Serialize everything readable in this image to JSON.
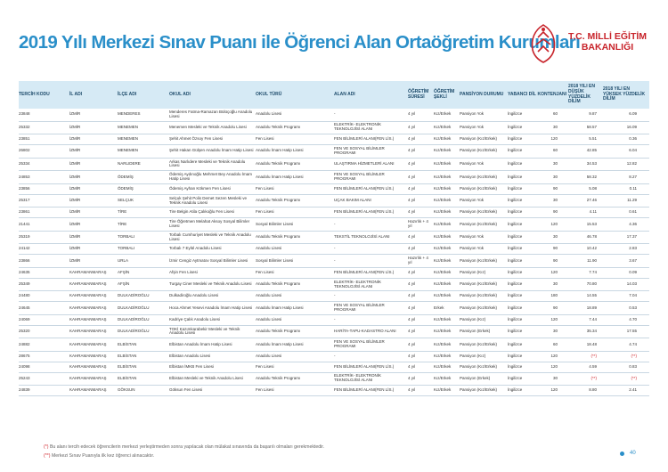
{
  "title": "2019 Yılı Merkezi Sınav Puanı ile Öğrenci Alan Ortaöğretim Kurumları",
  "logo": {
    "line1": "T.C. MİLLİ EĞİTİM",
    "line2": "BAKANLIĞI",
    "color": "#c8242b"
  },
  "accent_color": "#2a8fc9",
  "columns": [
    "TERCİH KODU",
    "İL ADI",
    "İLÇE ADI",
    "OKUL ADI",
    "OKUL TÜRÜ",
    "ALAN ADI",
    "ÖĞRETİM SÜRESİ",
    "ÖĞRETİM ŞEKLİ",
    "PANSİYON DURUMU",
    "YABANCI DİL",
    "KONTENJANI",
    "2018 YILI EN DÜŞÜK YÜZDELİK DİLİM",
    "2018 YILI EN YÜKSEK YÜZDELİK DİLİM"
  ],
  "rows": [
    [
      "23848",
      "İZMİR",
      "MENDERES",
      "Menderes Fatma-Ramazan Bülüçoğlu Anadolu Lisesi",
      "Anadolu Lisesi",
      "-",
      "4 yıl",
      "Kız/Erkek",
      "Pansiyon Yok",
      "İngilizce",
      "60",
      "9.87",
      "6.09"
    ],
    [
      "25332",
      "İZMİR",
      "MENEMEN",
      "Menemen Mesleki ve Teknik Anadolu Lisesi",
      "Anadolu Teknik Programı",
      "ELEKTRİK- ELEKTRONİK TEKNOLOJİSİ ALANI",
      "4 yıl",
      "Kız/Erkek",
      "Pansiyon Yok",
      "İngilizce",
      "30",
      "58.57",
      "16.09"
    ],
    [
      "23851",
      "İZMİR",
      "MENEMEN",
      "Şehit Ahmet Özsoy Fen Lisesi",
      "Fen Lisesi",
      "FEN BİLİMLERİ ALANI(FEN LİS.)",
      "4 yıl",
      "Kız/Erkek",
      "Pansiyon (Kız/Erkek)",
      "İngilizce",
      "120",
      "5.51",
      "0.36"
    ],
    [
      "26802",
      "İZMİR",
      "MENEMEN",
      "Şehit Hakan Gülşen Anadolu İmam Hatip Lisesi",
      "Anadolu İmam Hatip Lisesi",
      "FEN VE SOSYAL BİLİMLER PROGRAMI",
      "4 yıl",
      "Kız/Erkek",
      "Pansiyon (Kız/Erkek)",
      "İngilizce",
      "60",
      "42.85",
      "6.04"
    ],
    [
      "25334",
      "İZMİR",
      "NARLIDERE",
      "Arkas Narlıdere Mesleki ve Teknik Anadolu Lisesi",
      "Anadolu Teknik Programı",
      "ULAŞTIRMA HİZMETLERİ ALANI",
      "4 yıl",
      "Kız/Erkek",
      "Pansiyon Yok",
      "İngilizce",
      "30",
      "34.53",
      "12.82"
    ],
    [
      "24853",
      "İZMİR",
      "ÖDEMİŞ",
      "Ödemiş Aydınoğlu Mehmet Bey Anadolu İmam Hatip Lisesi",
      "Anadolu İmam Hatip Lisesi",
      "FEN VE SOSYAL BİLİMLER PROGRAMI",
      "4 yıl",
      "Kız/Erkek",
      "Pansiyon (Kız/Erkek)",
      "İngilizce",
      "30",
      "58.32",
      "8.27"
    ],
    [
      "23856",
      "İZMİR",
      "ÖDEMİŞ",
      "Ödemiş Ayhan Kökmen Fen Lisesi",
      "Fen Lisesi",
      "FEN BİLİMLERİ ALANI(FEN LİS.)",
      "4 yıl",
      "Kız/Erkek",
      "Pansiyon (Kız/Erkek)",
      "İngilizce",
      "90",
      "5.08",
      "0.11"
    ],
    [
      "25317",
      "İZMİR",
      "SELÇUK",
      "Selçuk Şehit Polis Demet Sezen Mesleki ve Teknik Anadolu Lisesi",
      "Anadolu Teknik Programı",
      "UÇAK BAKIM ALANI",
      "4 yıl",
      "Kız/Erkek",
      "Pansiyon Yok",
      "İngilizce",
      "30",
      "27.46",
      "11.29"
    ],
    [
      "23861",
      "İZMİR",
      "TİRE",
      "Tire Belgin Atila Çalıkoğlu Fen Lisesi",
      "Fen Lisesi",
      "FEN BİLİMLERİ ALANI(FEN LİS.)",
      "4 yıl",
      "Kız/Erkek",
      "Pansiyon (Kız/Erkek)",
      "İngilizce",
      "90",
      "4.11",
      "0.61"
    ],
    [
      "21441",
      "İZMİR",
      "TİRE",
      "Tire Öğretmen Melahat Aksoy Sosyal Bilimler Lisesi",
      "Sosyal Bilimler Lisesi",
      "-",
      "Hazırlık + 4 yıl",
      "Kız/Erkek",
      "Pansiyon (Kız/Erkek)",
      "İngilizce",
      "120",
      "15.53",
      "4.36"
    ],
    [
      "25319",
      "İZMİR",
      "TORBALI",
      "Torbalı Cumhuriyet Mesleki ve Teknik Anadolu Lisesi",
      "Anadolu Teknik Programı",
      "TEKSTİL TEKNOLOJİSİ ALANI",
      "4 yıl",
      "Kız/Erkek",
      "Pansiyon Yok",
      "İngilizce",
      "30",
      "46.78",
      "17.37"
    ],
    [
      "24142",
      "İZMİR",
      "TORBALI",
      "Torbalı 7 Eylül Anadolu Lisesi",
      "Anadolu Lisesi",
      "-",
      "4 yıl",
      "Kız/Erkek",
      "Pansiyon Yok",
      "İngilizce",
      "90",
      "10.42",
      "2.83"
    ],
    [
      "23866",
      "İZMİR",
      "URLA",
      "İzmir Cengiz Aytmatov Sosyal Bilimler Lisesi",
      "Sosyal Bilimler Lisesi",
      "-",
      "Hazırlık + 4 yıl",
      "Kız/Erkek",
      "Pansiyon (Kız/Erkek)",
      "İngilizce",
      "90",
      "11.90",
      "3.67"
    ],
    [
      "24635",
      "KAHRAMANMARAŞ",
      "AFŞİN",
      "Afşin Fen Lisesi",
      "Fen Lisesi",
      "FEN BİLİMLERİ ALANI(FEN LİS.)",
      "4 yıl",
      "Kız/Erkek",
      "Pansiyon (Kız)",
      "İngilizce",
      "120",
      "7.74",
      "0.09"
    ],
    [
      "25349",
      "KAHRAMANMARAŞ",
      "AFŞİN",
      "Turgay Ciner Mesleki ve Teknik Anadolu Lisesi",
      "Anadolu Teknik Programı",
      "ELEKTRİK- ELEKTRONİK TEKNOLOJİSİ ALANI",
      "4 yıl",
      "Kız/Erkek",
      "Pansiyon (Kız/Erkek)",
      "İngilizce",
      "30",
      "70.80",
      "14.03"
    ],
    [
      "24480",
      "KAHRAMANMARAŞ",
      "DULKADİROĞLU",
      "Dulkadiroğlu Anadolu Lisesi",
      "Anadolu Lisesi",
      "-",
      "4 yıl",
      "Kız/Erkek",
      "Pansiyon (Kız/Erkek)",
      "İngilizce",
      "180",
      "14.55",
      "7.04"
    ],
    [
      "24645",
      "KAHRAMANMARAŞ",
      "DULKADİROĞLU",
      "Hoca Ahmet Yesevi Anadolu İmam Hatip Lisesi",
      "Anadolu İmam Hatip Lisesi",
      "FEN VE SOSYAL BİLİMLER PROGRAMI",
      "4 yıl",
      "Erkek",
      "Pansiyon (Kız/Erkek)",
      "İngilizce",
      "90",
      "18.89",
      "0.53"
    ],
    [
      "24069",
      "KAHRAMANMARAŞ",
      "DULKADİROĞLU",
      "Kadriye Çalık Anadolu Lisesi",
      "Anadolu Lisesi",
      "-",
      "4 yıl",
      "Kız/Erkek",
      "Pansiyon (Kız)",
      "İngilizce",
      "120",
      "7.44",
      "4.70"
    ],
    [
      "25320",
      "KAHRAMANMARAŞ",
      "DULKADİROĞLU",
      "TOKİ Kazımkarabekir Mesleki ve Teknik Anadolu Lisesi",
      "Anadolu Teknik Programı",
      "HARİTA-TAPU-KADASTRO ALANI",
      "4 yıl",
      "Kız/Erkek",
      "Pansiyon (Erkek)",
      "İngilizce",
      "30",
      "35.34",
      "17.55"
    ],
    [
      "24882",
      "KAHRAMANMARAŞ",
      "ELBİSTAN",
      "Elbistan Anadolu İmam Hatip Lisesi",
      "Anadolu İmam Hatip Lisesi",
      "FEN VE SOSYAL BİLİMLER PROGRAMI",
      "4 yıl",
      "Kız/Erkek",
      "Pansiyon (Kız/Erkek)",
      "İngilizce",
      "60",
      "18.48",
      "4.74"
    ],
    [
      "28675",
      "KAHRAMANMARAŞ",
      "ELBİSTAN",
      "Elbistan Anadolu Lisesi",
      "Anadolu Lisesi",
      "-",
      "4 yıl",
      "Kız/Erkek",
      "Pansiyon (Kız)",
      "İngilizce",
      "120",
      "(**)",
      "(**)"
    ],
    [
      "24098",
      "KAHRAMANMARAŞ",
      "ELBİSTAN",
      "Elbistan İMKB Fen Lisesi",
      "Fen Lisesi",
      "FEN BİLİMLERİ ALANI(FEN LİS.)",
      "4 yıl",
      "Kız/Erkek",
      "Pansiyon (Kız/Erkek)",
      "İngilizce",
      "120",
      "4.59",
      "0.83"
    ],
    [
      "25243",
      "KAHRAMANMARAŞ",
      "ELBİSTAN",
      "Elbistan Mesleki ve Teknik Anadolu Lisesi",
      "Anadolu Teknik Programı",
      "ELEKTRİK- ELEKTRONİK TEKNOLOJİSİ ALANI",
      "4 yıl",
      "Kız/Erkek",
      "Pansiyon (Erkek)",
      "İngilizce",
      "30",
      "(**)",
      "(**)"
    ],
    [
      "24839",
      "KAHRAMANMARAŞ",
      "GÖKSUN",
      "Göksun Fen Lisesi",
      "Fen Lisesi",
      "FEN BİLİMLERİ ALANI(FEN LİS.)",
      "4 yıl",
      "Kız/Erkek",
      "Pansiyon (Kız/Erkek)",
      "İngilizce",
      "120",
      "8.80",
      "2.41"
    ]
  ],
  "footnotes": [
    {
      "mark": "(*)",
      "text": "Bu alanı tercih edecek öğrencilerin merkezi yerleştirmeden sonra yapılacak olan mülakat sınavında da başarılı olmaları gerekmektedir."
    },
    {
      "mark": "(**)",
      "text": "Merkezi Sınav Puanıyla ilk kez öğrenci alınacaktır."
    }
  ],
  "page_number": "40"
}
